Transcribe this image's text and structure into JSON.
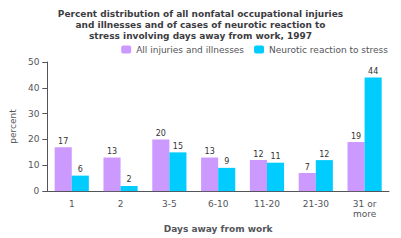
{
  "chart_data": {
    "type": "bar",
    "title": "Percent distribution of all nonfatal occupational injuries\nand illnesses and of cases of neurotic reaction to\nstress involving days away from work, 1997",
    "categories": [
      "1",
      "2",
      "3-5",
      "6-10",
      "11-20",
      "21-30",
      "31 or\nmore"
    ],
    "series": [
      {
        "name": "All injuries and illnesses",
        "color": "#CC99FF",
        "values": [
          17,
          13,
          20,
          13,
          12,
          7,
          19
        ]
      },
      {
        "name": "Neurotic reaction to stress",
        "color": "#00CCFF",
        "values": [
          6,
          2,
          15,
          9,
          11,
          12,
          44
        ]
      }
    ],
    "xlabel": "Days away from work",
    "ylabel": "percent",
    "ylim": [
      0,
      50
    ],
    "yticks": [
      0,
      10,
      20,
      30,
      40,
      50
    ],
    "legend": "upper right",
    "data_labels": true,
    "grid": false
  }
}
